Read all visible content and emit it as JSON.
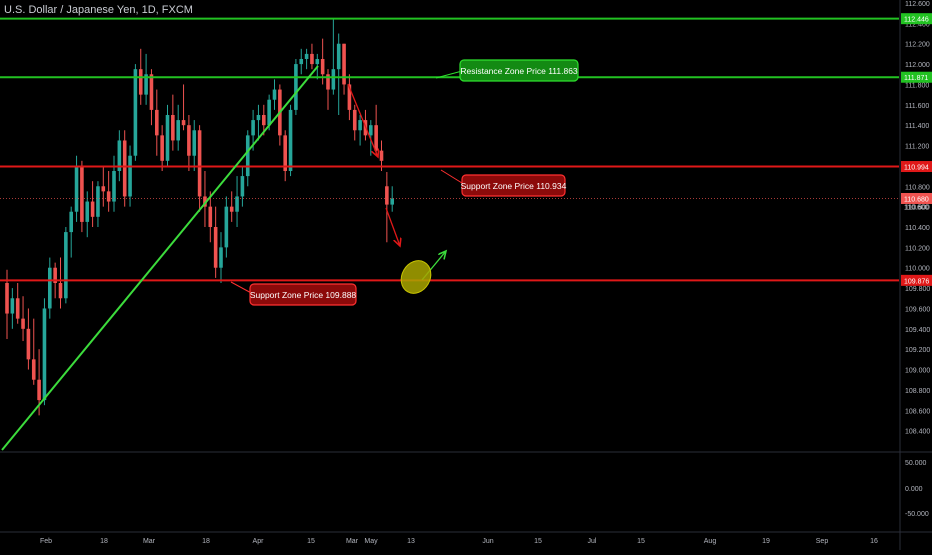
{
  "header": {
    "symbol_title": "U.S. Dollar / Japanese Yen, 1D, FXCM"
  },
  "chart_data": {
    "type": "candlestick",
    "price_axis": {
      "ylim": [
        108.2,
        112.6
      ],
      "ticks": [
        "112.600",
        "112.400",
        "112.200",
        "112.000",
        "111.800",
        "111.600",
        "111.400",
        "111.200",
        "111.000",
        "110.800",
        "110.600",
        "110.400",
        "110.200",
        "110.000",
        "109.800",
        "109.600",
        "109.400",
        "109.200",
        "109.000",
        "108.800",
        "108.600",
        "108.400"
      ]
    },
    "indicator_axis": {
      "ticks": [
        "50.000",
        "0.000",
        "-50.000"
      ]
    },
    "time_axis": {
      "labels": [
        "Feb",
        "18",
        "Mar",
        "18",
        "Apr",
        "15",
        "Mar",
        "May",
        "13",
        "Jun",
        "15",
        "Jul",
        "15",
        "Aug",
        "19",
        "Sep",
        "16"
      ]
    },
    "price_badges": [
      {
        "value": "112.446",
        "color": "#22c222"
      },
      {
        "value": "111.871",
        "color": "#22c222"
      },
      {
        "value": "110.994",
        "color": "#e01818"
      },
      {
        "value": "110.680",
        "color": "#ef5350"
      },
      {
        "value": "110.600",
        "color": "none"
      },
      {
        "value": "109.876",
        "color": "#e01818"
      }
    ],
    "levels": [
      {
        "price": 112.446,
        "color": "#22c222"
      },
      {
        "price": 111.871,
        "color": "#22c222"
      },
      {
        "price": 110.994,
        "color": "#e01818"
      },
      {
        "price": 109.876,
        "color": "#e01818"
      }
    ],
    "current_price": 110.68,
    "annotations": [
      {
        "text": "Resistance Zone Price  111.863",
        "color": "#22c222"
      },
      {
        "text": "Support Zone Price 110.934",
        "color": "#e01818"
      },
      {
        "text": "Support Zone Price  109.888",
        "color": "#e01818"
      }
    ],
    "candles": [
      {
        "o": 109.85,
        "h": 109.98,
        "l": 109.3,
        "c": 109.55
      },
      {
        "o": 109.55,
        "h": 109.8,
        "l": 109.4,
        "c": 109.7
      },
      {
        "o": 109.7,
        "h": 109.85,
        "l": 109.45,
        "c": 109.5
      },
      {
        "o": 109.5,
        "h": 109.72,
        "l": 109.28,
        "c": 109.4
      },
      {
        "o": 109.4,
        "h": 109.6,
        "l": 109.0,
        "c": 109.1
      },
      {
        "o": 109.1,
        "h": 109.5,
        "l": 108.85,
        "c": 108.9
      },
      {
        "o": 108.9,
        "h": 109.2,
        "l": 108.55,
        "c": 108.7
      },
      {
        "o": 108.7,
        "h": 109.7,
        "l": 108.65,
        "c": 109.6
      },
      {
        "o": 109.6,
        "h": 110.1,
        "l": 109.5,
        "c": 110.0
      },
      {
        "o": 110.0,
        "h": 110.05,
        "l": 109.7,
        "c": 109.85
      },
      {
        "o": 109.85,
        "h": 110.1,
        "l": 109.6,
        "c": 109.7
      },
      {
        "o": 109.7,
        "h": 110.4,
        "l": 109.65,
        "c": 110.35
      },
      {
        "o": 110.35,
        "h": 110.6,
        "l": 110.1,
        "c": 110.55
      },
      {
        "o": 110.55,
        "h": 111.1,
        "l": 110.45,
        "c": 111.0
      },
      {
        "o": 111.0,
        "h": 111.05,
        "l": 110.35,
        "c": 110.45
      },
      {
        "o": 110.45,
        "h": 110.75,
        "l": 110.3,
        "c": 110.65
      },
      {
        "o": 110.65,
        "h": 110.85,
        "l": 110.4,
        "c": 110.5
      },
      {
        "o": 110.5,
        "h": 110.85,
        "l": 110.4,
        "c": 110.8
      },
      {
        "o": 110.8,
        "h": 111.0,
        "l": 110.6,
        "c": 110.75
      },
      {
        "o": 110.75,
        "h": 110.95,
        "l": 110.55,
        "c": 110.65
      },
      {
        "o": 110.65,
        "h": 111.1,
        "l": 110.55,
        "c": 110.95
      },
      {
        "o": 110.95,
        "h": 111.35,
        "l": 110.85,
        "c": 111.25
      },
      {
        "o": 111.25,
        "h": 111.35,
        "l": 110.6,
        "c": 110.7
      },
      {
        "o": 110.7,
        "h": 111.2,
        "l": 110.6,
        "c": 111.1
      },
      {
        "o": 111.1,
        "h": 112.0,
        "l": 111.05,
        "c": 111.95
      },
      {
        "o": 111.95,
        "h": 112.15,
        "l": 111.6,
        "c": 111.7
      },
      {
        "o": 111.7,
        "h": 112.1,
        "l": 111.6,
        "c": 111.9
      },
      {
        "o": 111.9,
        "h": 111.95,
        "l": 111.4,
        "c": 111.55
      },
      {
        "o": 111.55,
        "h": 111.75,
        "l": 111.1,
        "c": 111.3
      },
      {
        "o": 111.3,
        "h": 111.4,
        "l": 110.95,
        "c": 111.05
      },
      {
        "o": 111.05,
        "h": 111.6,
        "l": 111.0,
        "c": 111.5
      },
      {
        "o": 111.5,
        "h": 111.7,
        "l": 111.15,
        "c": 111.25
      },
      {
        "o": 111.25,
        "h": 111.6,
        "l": 111.15,
        "c": 111.45
      },
      {
        "o": 111.45,
        "h": 111.8,
        "l": 111.35,
        "c": 111.4
      },
      {
        "o": 111.4,
        "h": 111.5,
        "l": 110.95,
        "c": 111.1
      },
      {
        "o": 111.1,
        "h": 111.45,
        "l": 110.95,
        "c": 111.35
      },
      {
        "o": 111.35,
        "h": 111.4,
        "l": 110.55,
        "c": 110.7
      },
      {
        "o": 110.7,
        "h": 110.95,
        "l": 110.4,
        "c": 110.6
      },
      {
        "o": 110.6,
        "h": 110.75,
        "l": 110.25,
        "c": 110.4
      },
      {
        "o": 110.4,
        "h": 110.6,
        "l": 109.9,
        "c": 110.0
      },
      {
        "o": 110.0,
        "h": 110.35,
        "l": 109.85,
        "c": 110.2
      },
      {
        "o": 110.2,
        "h": 110.7,
        "l": 110.1,
        "c": 110.6
      },
      {
        "o": 110.6,
        "h": 110.75,
        "l": 110.45,
        "c": 110.55
      },
      {
        "o": 110.55,
        "h": 110.9,
        "l": 110.4,
        "c": 110.7
      },
      {
        "o": 110.7,
        "h": 111.0,
        "l": 110.6,
        "c": 110.9
      },
      {
        "o": 110.9,
        "h": 111.35,
        "l": 110.8,
        "c": 111.3
      },
      {
        "o": 111.3,
        "h": 111.55,
        "l": 111.15,
        "c": 111.45
      },
      {
        "o": 111.45,
        "h": 111.6,
        "l": 111.25,
        "c": 111.5
      },
      {
        "o": 111.5,
        "h": 111.6,
        "l": 111.3,
        "c": 111.4
      },
      {
        "o": 111.4,
        "h": 111.7,
        "l": 111.35,
        "c": 111.65
      },
      {
        "o": 111.65,
        "h": 111.85,
        "l": 111.55,
        "c": 111.75
      },
      {
        "o": 111.75,
        "h": 111.8,
        "l": 111.2,
        "c": 111.3
      },
      {
        "o": 111.3,
        "h": 111.35,
        "l": 110.85,
        "c": 110.95
      },
      {
        "o": 110.95,
        "h": 111.6,
        "l": 110.9,
        "c": 111.55
      },
      {
        "o": 111.55,
        "h": 112.05,
        "l": 111.5,
        "c": 112.0
      },
      {
        "o": 112.0,
        "h": 112.15,
        "l": 111.9,
        "c": 112.05
      },
      {
        "o": 112.05,
        "h": 112.15,
        "l": 111.95,
        "c": 112.1
      },
      {
        "o": 112.1,
        "h": 112.2,
        "l": 111.95,
        "c": 112.0
      },
      {
        "o": 112.0,
        "h": 112.1,
        "l": 111.85,
        "c": 112.05
      },
      {
        "o": 112.05,
        "h": 112.25,
        "l": 111.8,
        "c": 111.9
      },
      {
        "o": 111.9,
        "h": 111.95,
        "l": 111.55,
        "c": 111.75
      },
      {
        "o": 111.75,
        "h": 112.45,
        "l": 111.7,
        "c": 111.95
      },
      {
        "o": 111.95,
        "h": 112.3,
        "l": 111.5,
        "c": 112.2
      },
      {
        "o": 112.2,
        "h": 112.2,
        "l": 111.7,
        "c": 111.8
      },
      {
        "o": 111.8,
        "h": 111.9,
        "l": 111.45,
        "c": 111.55
      },
      {
        "o": 111.55,
        "h": 111.6,
        "l": 111.25,
        "c": 111.35
      },
      {
        "o": 111.35,
        "h": 111.5,
        "l": 111.2,
        "c": 111.45
      },
      {
        "o": 111.45,
        "h": 111.55,
        "l": 111.25,
        "c": 111.3
      },
      {
        "o": 111.3,
        "h": 111.45,
        "l": 111.1,
        "c": 111.4
      },
      {
        "o": 111.4,
        "h": 111.6,
        "l": 111.1,
        "c": 111.15
      },
      {
        "o": 111.15,
        "h": 111.25,
        "l": 110.95,
        "c": 111.05
      },
      {
        "o": 110.8,
        "h": 110.94,
        "l": 110.25,
        "c": 110.62
      },
      {
        "o": 110.62,
        "h": 110.8,
        "l": 110.55,
        "c": 110.68
      }
    ]
  }
}
